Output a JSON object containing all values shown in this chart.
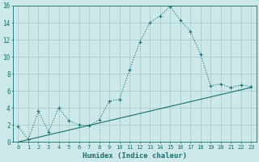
{
  "xlabel": "Humidex (Indice chaleur)",
  "ylabel": "",
  "background_color": "#cce8e8",
  "grid_color": "#aacccc",
  "line_color": "#1a6e6e",
  "xlim": [
    -0.5,
    23.5
  ],
  "ylim": [
    0,
    16
  ],
  "xticks": [
    0,
    1,
    2,
    3,
    4,
    5,
    6,
    7,
    8,
    9,
    10,
    11,
    12,
    13,
    14,
    15,
    16,
    17,
    18,
    19,
    20,
    21,
    22,
    23
  ],
  "yticks": [
    0,
    2,
    4,
    6,
    8,
    10,
    12,
    14,
    16
  ],
  "curve1_x": [
    0,
    1,
    2,
    3,
    4,
    5,
    6,
    7,
    8,
    9,
    10,
    11,
    12,
    13,
    14,
    15,
    16,
    17,
    18,
    19,
    20,
    21,
    22,
    23
  ],
  "curve1_y": [
    1.8,
    0.3,
    3.6,
    1.2,
    4.0,
    2.5,
    2.0,
    1.9,
    2.6,
    4.8,
    5.0,
    8.5,
    11.7,
    14.0,
    14.8,
    15.9,
    14.3,
    13.0,
    10.3,
    6.6,
    6.8,
    6.4,
    6.7,
    6.5
  ],
  "curve2_x": [
    0,
    23
  ],
  "curve2_y": [
    0.0,
    6.4
  ]
}
